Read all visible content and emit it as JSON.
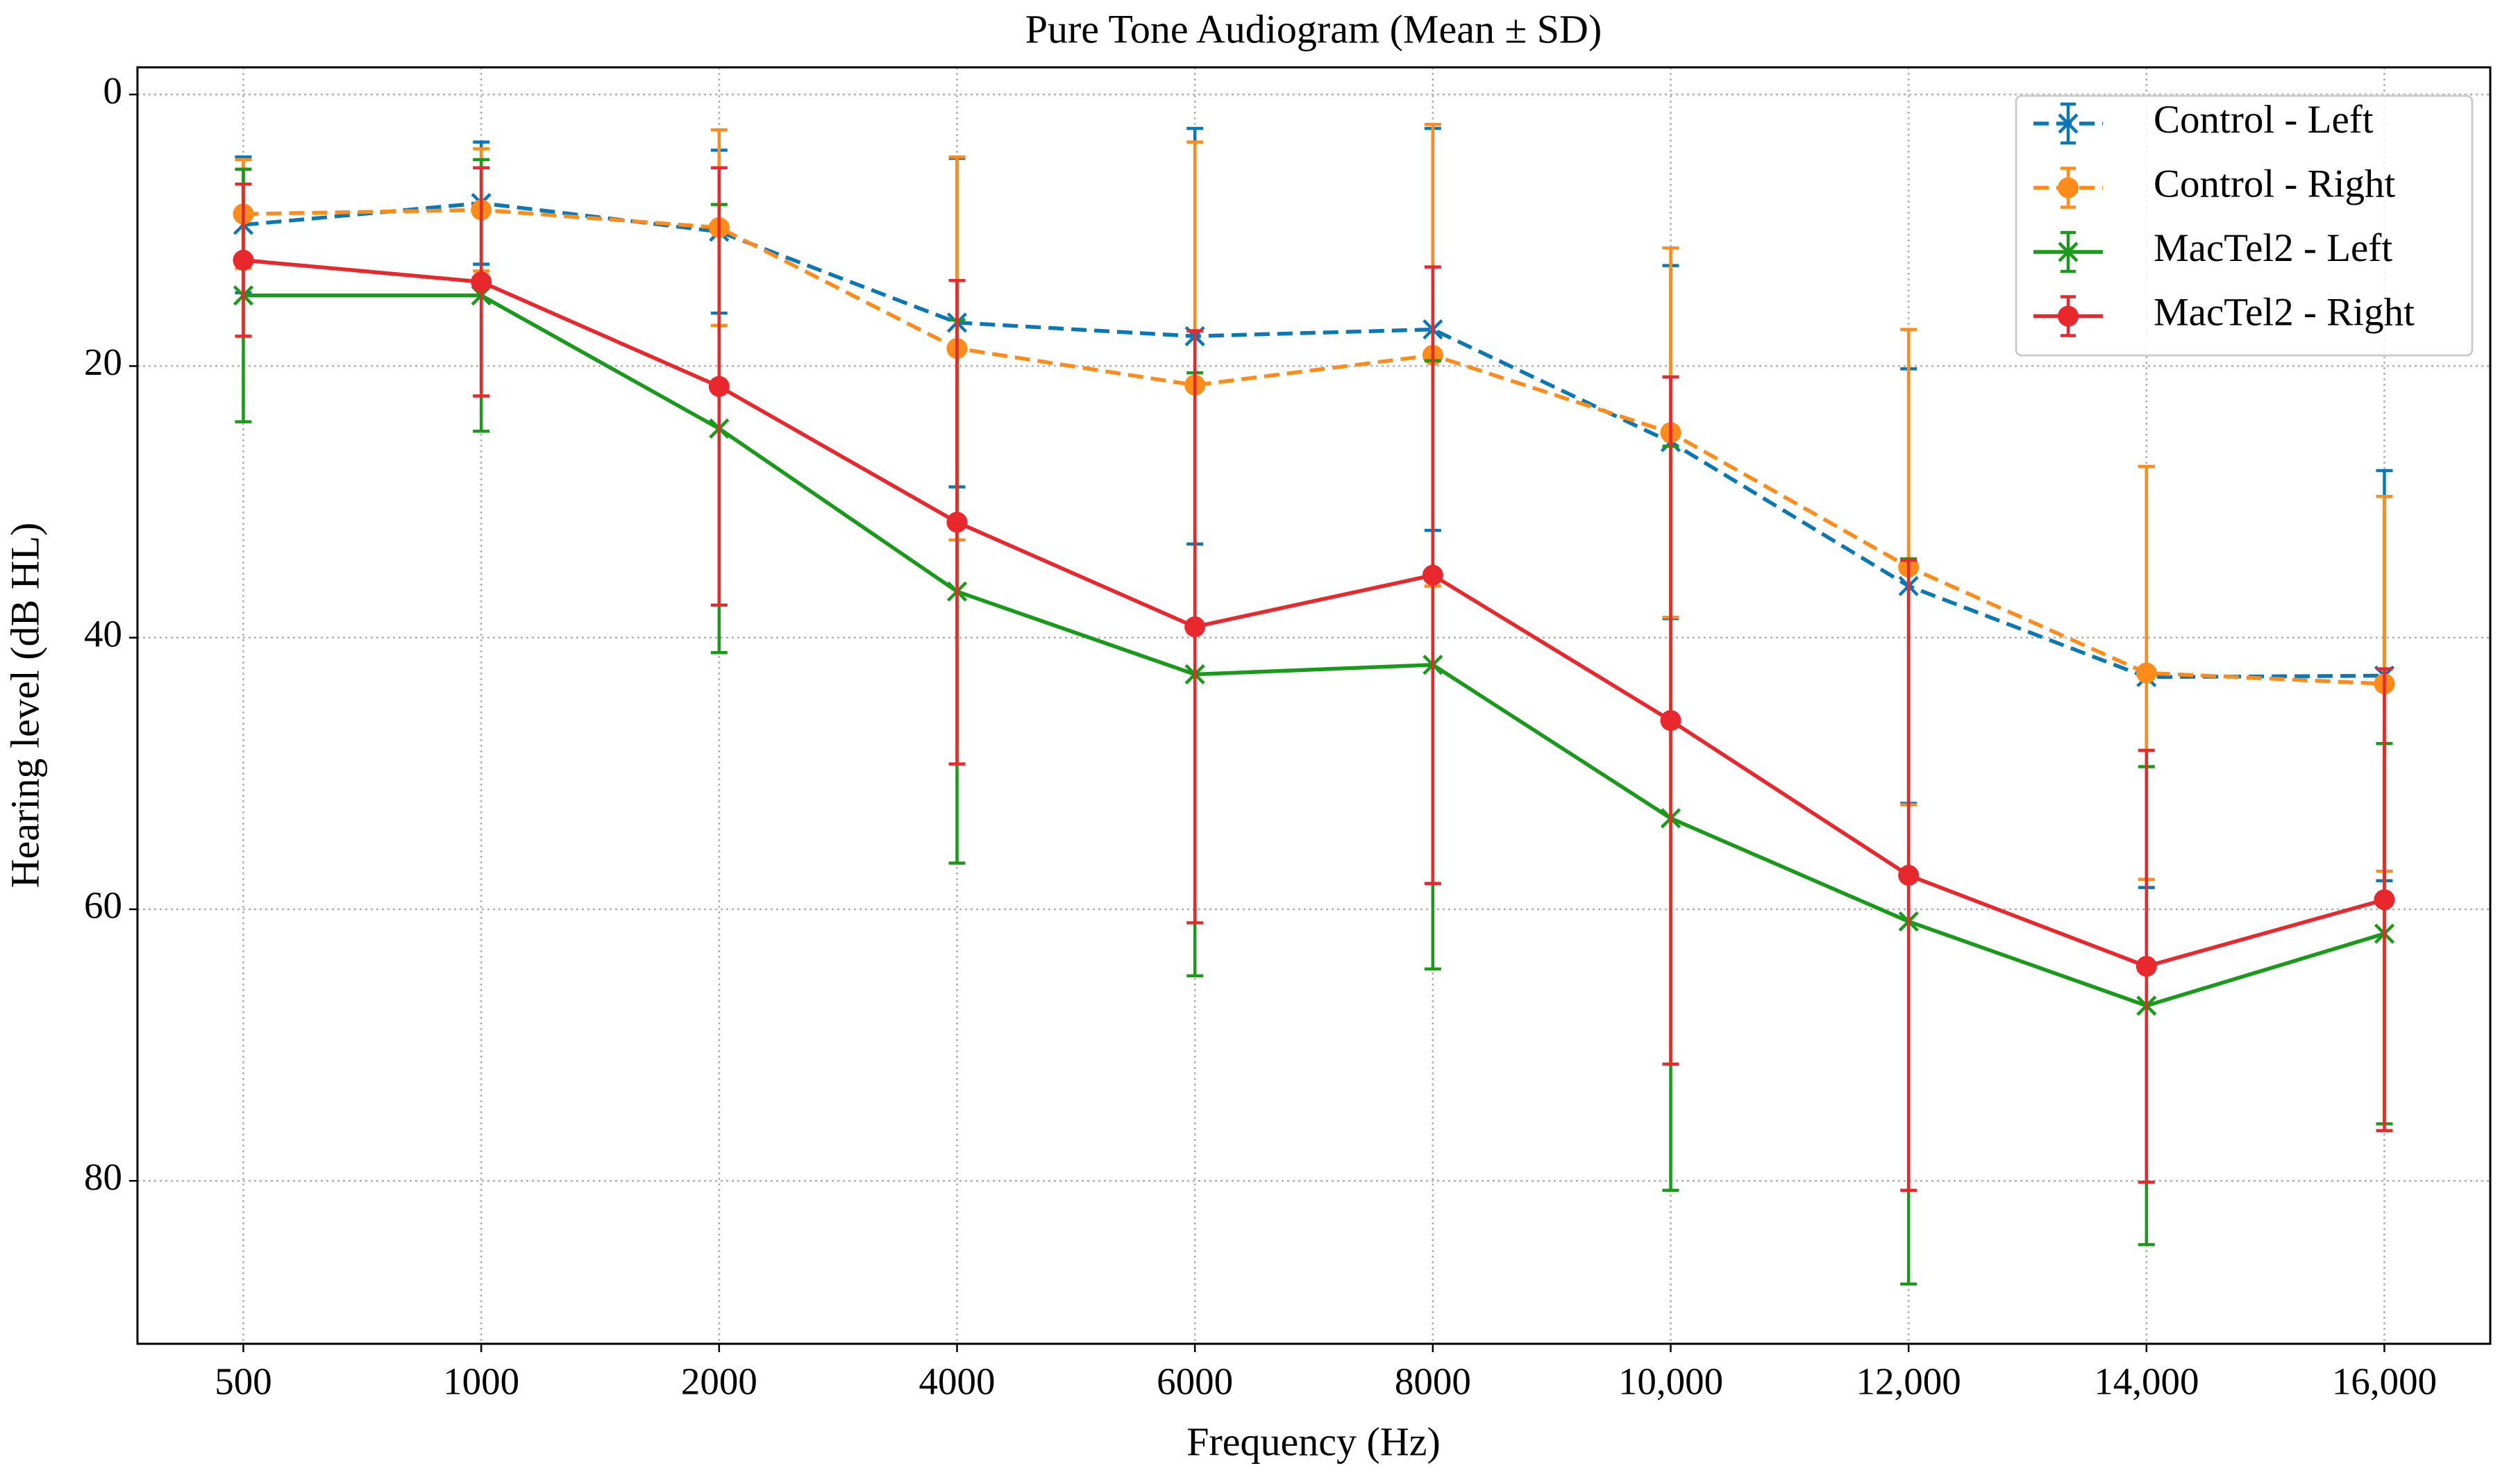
{
  "chart_data": {
    "type": "line",
    "title": "Pure Tone Audiogram (Mean ± SD)",
    "x_label": "Frequency (Hz)",
    "y_label": "Hearing level (dB HL)",
    "categories": [
      "500",
      "1000",
      "2000",
      "4000",
      "6000",
      "8000",
      "10,000",
      "12,000",
      "14,000",
      "16,000"
    ],
    "ylim": [
      -2,
      92
    ],
    "y_inverted": true,
    "yticks": [
      0,
      20,
      40,
      60,
      80
    ],
    "grid": true,
    "legend_position": "upper right",
    "series": [
      {
        "name": "Control - Left",
        "color": "#0a78b4",
        "linestyle": "dashed",
        "marker": "x",
        "values": [
          9.6,
          8.0,
          10.1,
          16.8,
          17.8,
          17.3,
          25.6,
          36.2,
          42.9,
          42.8
        ],
        "errors": [
          5.0,
          4.5,
          6.0,
          12.1,
          15.3,
          14.8,
          13.0,
          16.0,
          15.5,
          15.1
        ]
      },
      {
        "name": "Control - Right",
        "color": "#ff8c1a",
        "linestyle": "dashed",
        "marker": "o",
        "values": [
          8.8,
          8.5,
          9.8,
          18.7,
          21.4,
          19.2,
          24.9,
          34.8,
          42.6,
          43.4
        ],
        "errors": [
          4.0,
          4.5,
          7.2,
          14.1,
          17.9,
          17.0,
          13.6,
          17.5,
          15.2,
          13.8
        ]
      },
      {
        "name": "MacTel2 - Left",
        "color": "#1a9a1a",
        "linestyle": "solid",
        "marker": "x",
        "values": [
          14.8,
          14.8,
          24.6,
          36.6,
          42.7,
          42.0,
          53.3,
          60.9,
          67.1,
          61.8
        ],
        "errors": [
          9.3,
          10.0,
          16.5,
          20.0,
          22.2,
          22.4,
          27.4,
          26.7,
          17.6,
          14.0
        ]
      },
      {
        "name": "MacTel2 - Right",
        "color": "#e8282c",
        "linestyle": "solid",
        "marker": "o",
        "values": [
          12.2,
          13.8,
          21.5,
          31.5,
          39.2,
          35.4,
          46.1,
          57.5,
          64.2,
          59.3
        ],
        "errors": [
          5.6,
          8.4,
          16.1,
          17.8,
          21.8,
          22.7,
          25.3,
          23.2,
          15.9,
          17.0
        ]
      }
    ]
  }
}
